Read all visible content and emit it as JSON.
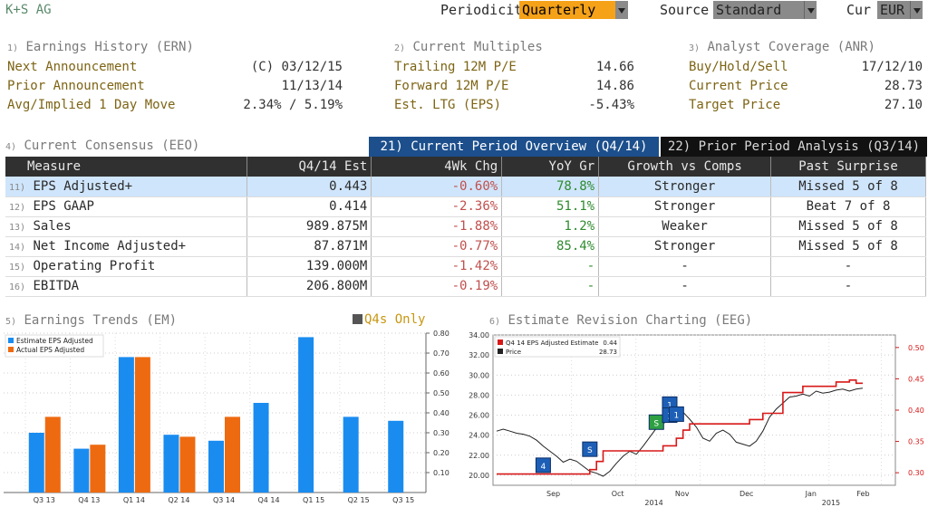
{
  "header": {
    "title": "K+S AG",
    "periodicity_label": "Periodicity",
    "periodicity_value": "Quarterly",
    "source_label": "Source",
    "source_value": "Standard",
    "cur_label": "Cur",
    "cur_value": "EUR"
  },
  "panels": {
    "ern": {
      "num": "1)",
      "title": "Earnings History (ERN)",
      "rows": [
        {
          "label": "Next Announcement",
          "value": "(C) 03/12/15"
        },
        {
          "label": "Prior Announcement",
          "value": "11/13/14"
        },
        {
          "label": "Avg/Implied 1 Day Move",
          "value": "2.34% / 5.19%"
        }
      ]
    },
    "multiples": {
      "num": "2)",
      "title": "Current Multiples",
      "rows": [
        {
          "label": "Trailing 12M P/E",
          "value": "14.66"
        },
        {
          "label": "Forward 12M P/E",
          "value": "14.86"
        },
        {
          "label": "Est. LTG (EPS)",
          "value": "-5.43%"
        }
      ]
    },
    "anr": {
      "num": "3)",
      "title": "Analyst Coverage (ANR)",
      "rows": [
        {
          "label": "Buy/Hold/Sell",
          "value": "17/12/10"
        },
        {
          "label": "Current Price",
          "value": "28.73"
        },
        {
          "label": "Target Price",
          "value": "27.10"
        }
      ]
    }
  },
  "consensus": {
    "num": "4)",
    "title": "Current Consensus (EEO)",
    "tab_current": "21) Current Period Overview (Q4/14)",
    "tab_prior": "22) Prior Period Analysis (Q3/14)",
    "columns": [
      "Measure",
      "Q4/14 Est",
      "4Wk Chg",
      "YoY Gr",
      "Growth vs Comps",
      "Past Surprise"
    ],
    "rows": [
      {
        "num": "11)",
        "measure": "EPS Adjusted+",
        "est": "0.443",
        "chg": "-0.60%",
        "yoy": "78.8%",
        "comps": "Stronger",
        "surprise": "Missed 5 of 8"
      },
      {
        "num": "12)",
        "measure": "EPS GAAP",
        "est": "0.414",
        "chg": "-2.36%",
        "yoy": "51.1%",
        "comps": "Stronger",
        "surprise": "Beat 7 of 8"
      },
      {
        "num": "13)",
        "measure": "Sales",
        "est": "989.875M",
        "chg": "-1.88%",
        "yoy": "1.2%",
        "comps": "Weaker",
        "surprise": "Missed 5 of 8"
      },
      {
        "num": "14)",
        "measure": "Net Income Adjusted+",
        "est": "87.871M",
        "chg": "-0.77%",
        "yoy": "85.4%",
        "comps": "Stronger",
        "surprise": "Missed 5 of 8"
      },
      {
        "num": "15)",
        "measure": "Operating Profit",
        "est": "139.000M",
        "chg": "-1.42%",
        "yoy": "-",
        "comps": "-",
        "surprise": "-"
      },
      {
        "num": "16)",
        "measure": "EBITDA",
        "est": "206.800M",
        "chg": "-0.19%",
        "yoy": "-",
        "comps": "-",
        "surprise": "-"
      }
    ]
  },
  "trends": {
    "num": "5)",
    "title": "Earnings Trends (EM)",
    "q4s_label": "Q4s Only"
  },
  "revision": {
    "num": "6)",
    "title": "Estimate Revision Charting (EEG)"
  },
  "colors": {
    "estimate": "#1a8cf0",
    "actual": "#ee6a10",
    "price": "#222222",
    "estimate_line": "#d81818"
  },
  "chart_data": [
    {
      "type": "bar",
      "categories": [
        "Q3 13",
        "Q4 13",
        "Q1 14",
        "Q2 14",
        "Q3 14",
        "Q4 14",
        "Q1 15",
        "Q2 15",
        "Q3 15"
      ],
      "series": [
        {
          "name": "Estimate EPS Adjusted",
          "values": [
            0.3,
            0.22,
            0.68,
            0.29,
            0.26,
            0.45,
            0.78,
            0.38,
            0.36
          ]
        },
        {
          "name": "Actual EPS Adjusted",
          "values": [
            0.38,
            0.24,
            0.68,
            0.28,
            0.38,
            null,
            null,
            null,
            null
          ]
        }
      ],
      "ylim": [
        0.0,
        0.8
      ],
      "yticks": [
        "0.10",
        "0.20",
        "0.30",
        "0.40",
        "0.50",
        "0.60",
        "0.70",
        "0.80"
      ],
      "legend": "top-left",
      "grid": true
    },
    {
      "type": "line",
      "x_labels": [
        "Sep",
        "Oct",
        "Nov",
        "Dec",
        "Jan",
        "Feb"
      ],
      "year_labels": [
        "2014",
        "2015"
      ],
      "left_ticks": [
        "20.00",
        "22.00",
        "24.00",
        "26.00",
        "28.00",
        "30.00",
        "32.00",
        "34.00"
      ],
      "right_ticks": [
        "0.30",
        "0.35",
        "0.40",
        "0.45",
        "0.50"
      ],
      "left_ylim": [
        19.0,
        34.0
      ],
      "right_ylim": [
        0.28,
        0.52
      ],
      "legend": "top-left",
      "legend_entries": [
        {
          "name": "Q4 14 EPS Adjusted Estimate",
          "value": "0.44"
        },
        {
          "name": "Price",
          "value": "28.73"
        }
      ],
      "series": [
        {
          "name": "Price",
          "axis": "left",
          "values": [
            24.4,
            24.6,
            24.4,
            24.2,
            24.1,
            23.9,
            23.5,
            22.9,
            22.4,
            21.9,
            21.3,
            21.6,
            21.4,
            20.9,
            20.4,
            20.2,
            19.9,
            20.4,
            21.2,
            21.9,
            22.4,
            22.1,
            22.9,
            23.8,
            24.7,
            25.2,
            25.4,
            25.9,
            26.3,
            25.6,
            24.8,
            23.7,
            23.4,
            24.2,
            24.5,
            24.1,
            23.3,
            23.1,
            22.9,
            23.4,
            24.4,
            25.8,
            26.6,
            27.2,
            27.8,
            27.9,
            28.1,
            27.9,
            28.4,
            28.2,
            28.3,
            28.5,
            28.6,
            28.4,
            28.6,
            28.7
          ]
        },
        {
          "name": "Q4 14 EPS Adjusted Estimate",
          "axis": "right",
          "values": [
            0.298,
            0.298,
            0.298,
            0.298,
            0.298,
            0.298,
            0.298,
            0.298,
            0.298,
            0.298,
            0.298,
            0.298,
            0.298,
            0.298,
            0.305,
            0.318,
            0.335,
            0.335,
            0.335,
            0.335,
            0.335,
            0.335,
            0.335,
            0.335,
            0.335,
            0.343,
            0.343,
            0.355,
            0.368,
            0.378,
            0.378,
            0.378,
            0.378,
            0.378,
            0.378,
            0.378,
            0.378,
            0.378,
            0.385,
            0.385,
            0.395,
            0.395,
            0.395,
            0.428,
            0.428,
            0.428,
            0.438,
            0.438,
            0.438,
            0.438,
            0.438,
            0.445,
            0.445,
            0.448,
            0.443,
            0.443
          ]
        }
      ],
      "markers": [
        "4",
        "S",
        "S",
        "1",
        "1",
        "1"
      ]
    }
  ]
}
